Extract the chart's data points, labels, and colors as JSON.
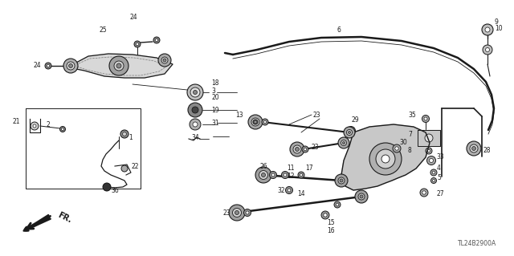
{
  "bg_color": "#ffffff",
  "line_color": "#1a1a1a",
  "diagram_code": "TL24B2900A",
  "figsize": [
    6.4,
    3.19
  ],
  "dpi": 100
}
